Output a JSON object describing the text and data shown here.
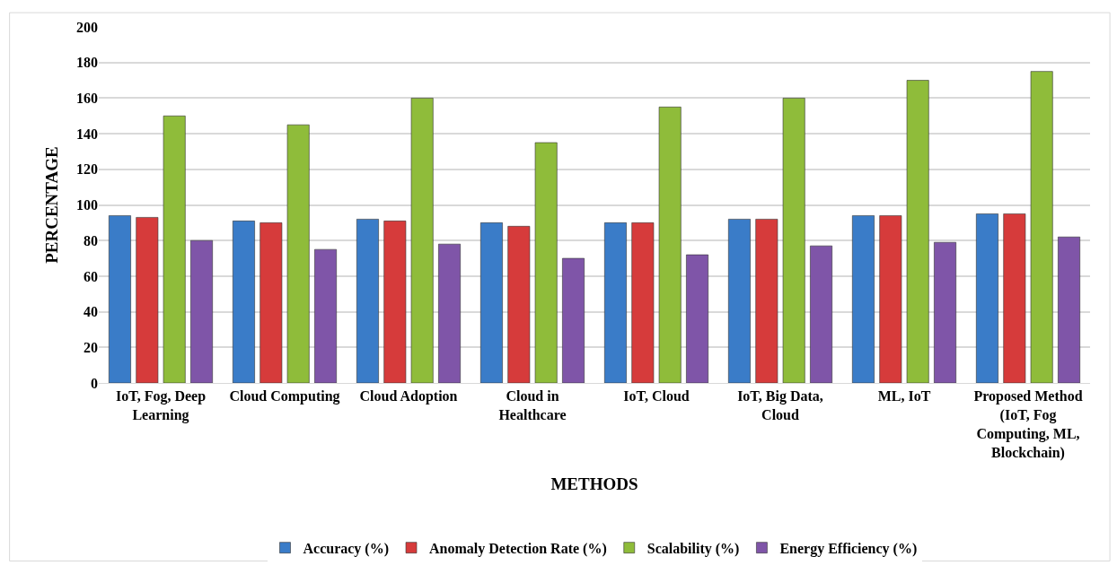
{
  "chart_data": {
    "type": "bar",
    "xlabel": "METHODS",
    "ylabel": "PERCENTAGE",
    "categories": [
      "IoT, Fog, Deep Learning",
      "Cloud Computing",
      "Cloud Adoption",
      "Cloud in Healthcare",
      "IoT, Cloud",
      "IoT, Big Data, Cloud",
      "ML, IoT",
      "Proposed Method (IoT, Fog Computing, ML, Blockchain)"
    ],
    "series": [
      {
        "name": "Accuracy (%)",
        "color": "#3a7cc8",
        "values": [
          94,
          91,
          92,
          90,
          90,
          92,
          94,
          95
        ]
      },
      {
        "name": "Anomaly Detection Rate (%)",
        "color": "#d63b3b",
        "values": [
          93,
          90,
          91,
          88,
          90,
          92,
          94,
          95
        ]
      },
      {
        "name": "Scalability (%)",
        "color": "#8fbc3a",
        "values": [
          150,
          145,
          160,
          135,
          155,
          160,
          170,
          175
        ]
      },
      {
        "name": "Energy Efficiency (%)",
        "color": "#7f55a8",
        "values": [
          80,
          75,
          78,
          70,
          72,
          77,
          79,
          82
        ]
      }
    ],
    "ylim": [
      0,
      200
    ],
    "yticks": [
      0,
      20,
      40,
      60,
      80,
      100,
      120,
      140,
      160,
      180,
      200
    ],
    "grid": "y",
    "legend": "bottom"
  }
}
